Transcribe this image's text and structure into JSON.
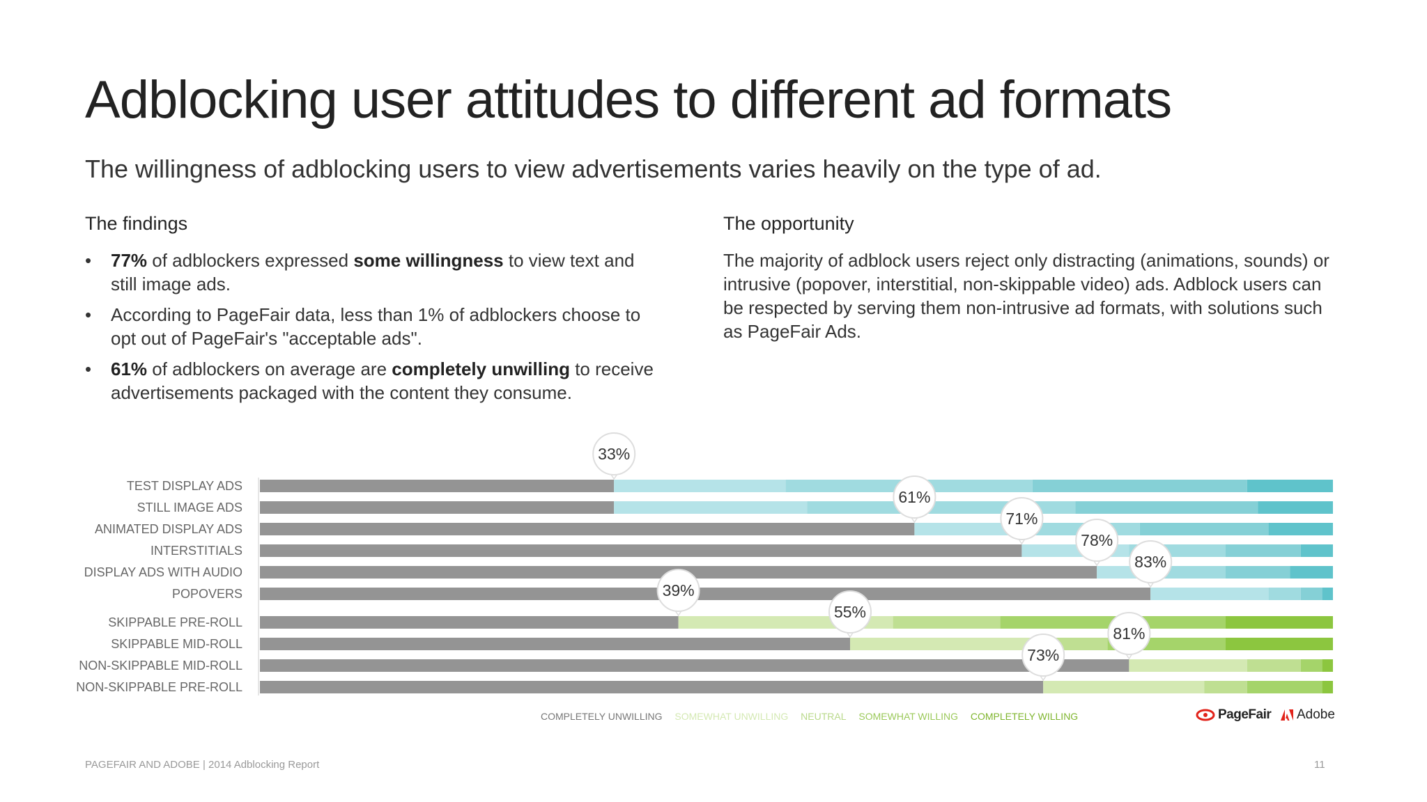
{
  "header": {
    "title": "Adblocking user attitudes to different ad formats",
    "subtitle": "The willingness of adblocking users to view advertisements varies heavily on the type of ad."
  },
  "findings": {
    "heading": "The findings",
    "bullet_symbol": "•",
    "items": [
      {
        "strong1": "77%",
        "t1": " of adblockers expressed ",
        "strong2": "some willingness",
        "t2": " to view text and still image ads."
      },
      {
        "strong1": "",
        "t1": "According to PageFair data, less than 1% of adblockers choose to opt out of PageFair's \"acceptable ads\".",
        "strong2": "",
        "t2": ""
      },
      {
        "strong1": "61%",
        "t1": " of adblockers on average are ",
        "strong2": "completely unwilling",
        "t2": " to receive advertisements packaged with the content they consume."
      }
    ]
  },
  "opportunity": {
    "heading": "The opportunity",
    "text": "The majority of adblock users reject only distracting (animations, sounds) or intrusive (popover, interstitial, non-skippable video) ads. Adblock users can be respected by serving them non-intrusive ad formats, with solutions such as PageFair Ads."
  },
  "colors": {
    "unwilling": "#949494",
    "blue": [
      "#b5e3e8",
      "#a0dbe0",
      "#85d0d6",
      "#5fc3cb"
    ],
    "green": [
      "#d4e9b3",
      "#bfdf92",
      "#a5d46a",
      "#8cc63f"
    ],
    "label": "#666666",
    "bubble_border": "#dddddd"
  },
  "chart_data": {
    "type": "bar",
    "stacked": true,
    "orientation": "horizontal",
    "xlim": [
      0,
      100
    ],
    "series_order": [
      "COMPLETELY UNWILLING",
      "SOMEWHAT UNWILLING",
      "NEUTRAL",
      "SOMEWHAT WILLING",
      "COMPLETELY WILLING"
    ],
    "groups": [
      {
        "palette": "blue",
        "rows": [
          {
            "category": "TEST DISPLAY ADS",
            "values": [
              33,
              16,
              23,
              20,
              8
            ],
            "callout": "33%"
          },
          {
            "category": "STILL IMAGE ADS",
            "values": [
              33,
              18,
              25,
              17,
              7
            ],
            "callout": ""
          },
          {
            "category": "ANIMATED DISPLAY ADS",
            "values": [
              61,
              9,
              12,
              12,
              6
            ],
            "callout": "61%"
          },
          {
            "category": "INTERSTITIALS",
            "values": [
              71,
              10,
              9,
              7,
              3
            ],
            "callout": "71%"
          },
          {
            "category": "DISPLAY ADS WITH AUDIO",
            "values": [
              78,
              6,
              6,
              6,
              4
            ],
            "callout": "78%"
          },
          {
            "category": "POPOVERS",
            "values": [
              83,
              11,
              3,
              2,
              1
            ],
            "callout": "83%"
          }
        ]
      },
      {
        "palette": "green",
        "rows": [
          {
            "category": "SKIPPABLE PRE-ROLL",
            "values": [
              39,
              20,
              10,
              21,
              10
            ],
            "callout": "39%"
          },
          {
            "category": "SKIPPABLE MID-ROLL",
            "values": [
              55,
              17,
              7,
              11,
              10
            ],
            "callout": "55%"
          },
          {
            "category": "NON-SKIPPABLE MID-ROLL",
            "values": [
              81,
              11,
              5,
              2,
              1
            ],
            "callout": "81%"
          },
          {
            "category": "NON-SKIPPABLE PRE-ROLL",
            "values": [
              73,
              15,
              4,
              7,
              1
            ],
            "callout": "73%"
          }
        ]
      }
    ],
    "legend": [
      {
        "label": "COMPLETELY UNWILLING",
        "color": "#777777"
      },
      {
        "label": "SOMEWHAT UNWILLING",
        "color": "#d4e9b3"
      },
      {
        "label": "NEUTRAL",
        "color": "#b9d98a"
      },
      {
        "label": "SOMEWHAT WILLING",
        "color": "#9bc95a"
      },
      {
        "label": "COMPLETELY WILLING",
        "color": "#7fb52e"
      }
    ],
    "legend_placement": "bottom-center"
  },
  "logos": {
    "pagefair": "PageFair",
    "adobe": "Adobe"
  },
  "footer": {
    "text": "PAGEFAIR AND ADOBE | 2014 Adblocking Report",
    "page": "11"
  }
}
